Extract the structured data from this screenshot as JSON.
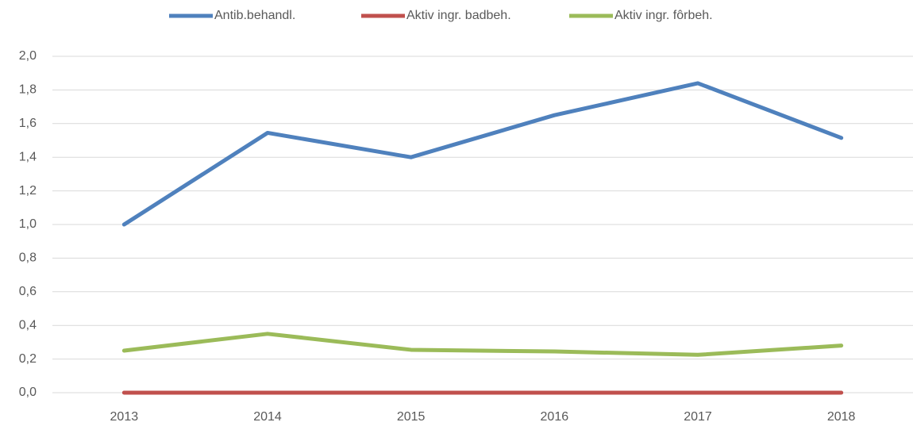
{
  "chart_data": {
    "type": "line",
    "categories": [
      "2013",
      "2014",
      "2015",
      "2016",
      "2017",
      "2018"
    ],
    "series": [
      {
        "name": "Antib.behandl.",
        "color": "#4f81bd",
        "values": [
          1.0,
          1.545,
          1.4,
          1.65,
          1.84,
          1.515
        ]
      },
      {
        "name": "Aktiv ingr. badbeh.",
        "color": "#c0504d",
        "values": [
          0,
          0,
          0,
          0,
          0,
          0
        ]
      },
      {
        "name": "Aktiv ingr. fôrbeh.",
        "color": "#9bbb59",
        "values": [
          0.25,
          0.35,
          0.255,
          0.245,
          0.225,
          0.28
        ]
      }
    ],
    "ylim": [
      0,
      2
    ],
    "yticks": [
      {
        "value": 0,
        "label": "0,0"
      },
      {
        "value": 0.2,
        "label": "0,2"
      },
      {
        "value": 0.4,
        "label": "0,4"
      },
      {
        "value": 0.6,
        "label": "0,6"
      },
      {
        "value": 0.8,
        "label": "0,8"
      },
      {
        "value": 1,
        "label": "1,0"
      },
      {
        "value": 1.2,
        "label": "1,2"
      },
      {
        "value": 1.4,
        "label": "1,4"
      },
      {
        "value": 1.6,
        "label": "1,6"
      },
      {
        "value": 1.8,
        "label": "1,8"
      },
      {
        "value": 2,
        "label": "2,0"
      }
    ],
    "grid": true,
    "legend": "top"
  }
}
